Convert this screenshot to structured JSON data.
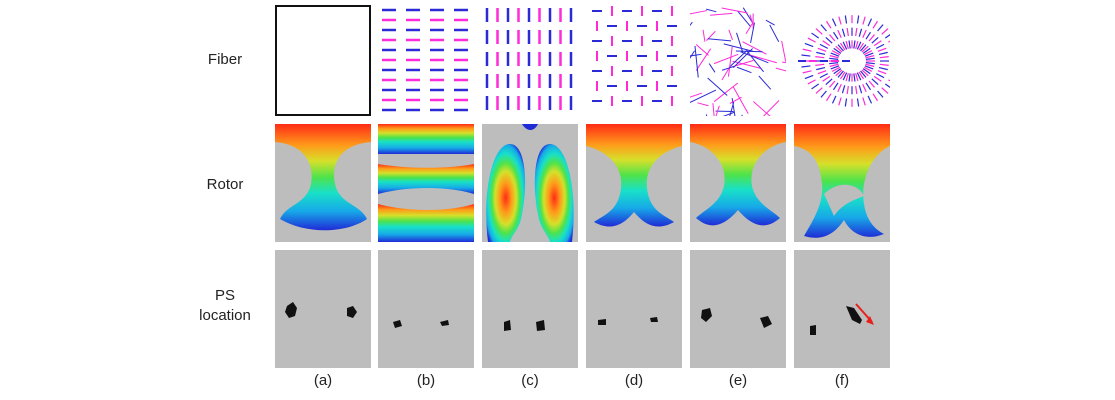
{
  "row_labels": {
    "fiber": "Fiber",
    "rotor": "Rotor",
    "ps_line1": "PS",
    "ps_line2": "location"
  },
  "columns": [
    {
      "label": "(a)",
      "fiber_pattern": "none"
    },
    {
      "label": "(b)",
      "fiber_pattern": "horizontal-dashes"
    },
    {
      "label": "(c)",
      "fiber_pattern": "vertical-dashes"
    },
    {
      "label": "(d)",
      "fiber_pattern": "alternating-cross"
    },
    {
      "label": "(e)",
      "fiber_pattern": "random"
    },
    {
      "label": "(f)",
      "fiber_pattern": "radial"
    }
  ],
  "colors": {
    "fiber_primary": "#2a2ad6",
    "fiber_secondary": "#ff2bd8",
    "background_gray": "#bdbdbd",
    "ps_grid": "#a9a9a9",
    "ps_blob": "#111111",
    "arrow": "#e8201b",
    "rotor_colormap": [
      "#1f2bd6",
      "#17a9e8",
      "#18e0c8",
      "#4fe34a",
      "#d6e02a",
      "#ff9a1a",
      "#ff2b16"
    ]
  },
  "ps_arrow_column": "(f)"
}
